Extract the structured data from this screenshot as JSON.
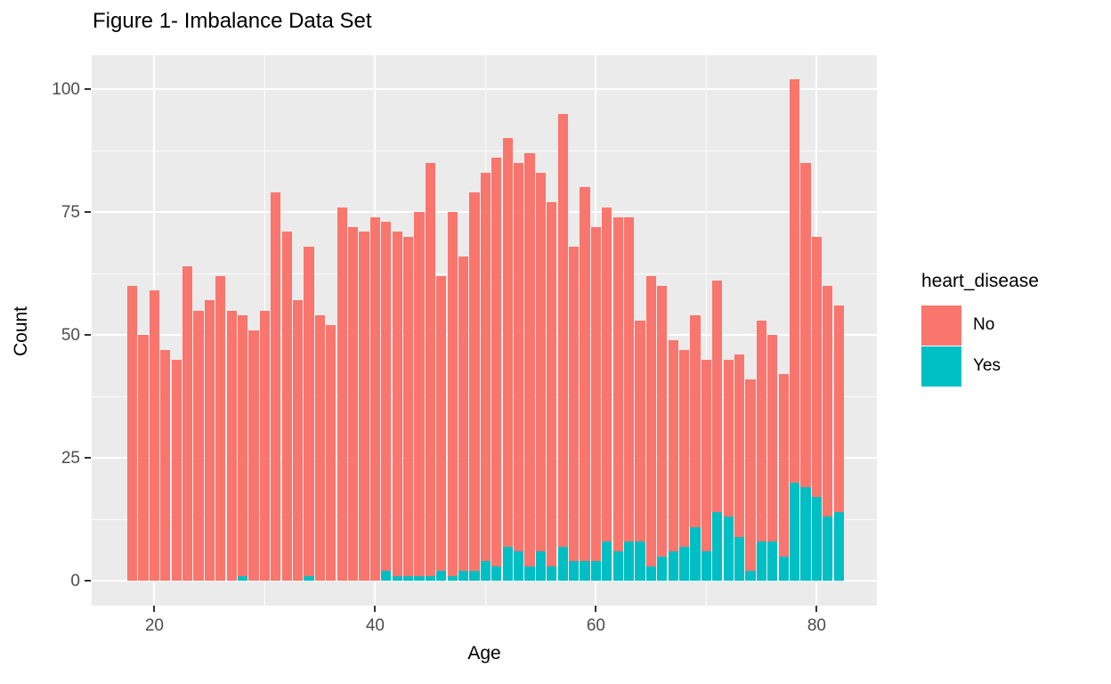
{
  "title": "Figure 1- Imbalance Data Set",
  "axes": {
    "x_label": "Age",
    "y_label": "Count",
    "x_tick_values": [
      20,
      40,
      60,
      80
    ],
    "y_tick_values": [
      0,
      25,
      50,
      75,
      100
    ]
  },
  "legend": {
    "title": "heart_disease",
    "entries": [
      {
        "label": "No",
        "color": "#F8766D"
      },
      {
        "label": "Yes",
        "color": "#00BFC4"
      }
    ]
  },
  "colors": {
    "panel_background": "#EBEBEB",
    "gridline": "#FFFFFF",
    "tick_text": "#4D4D4D",
    "series_no": "#F8766D",
    "series_yes": "#00BFC4"
  },
  "chart_data": {
    "type": "bar",
    "stacked": true,
    "title": "Figure 1- Imbalance Data Set",
    "xlabel": "Age",
    "ylabel": "Count",
    "legend_title": "heart_disease",
    "legend_position": "right",
    "grid": true,
    "xlim": [
      14.3,
      85.7
    ],
    "ylim": [
      0,
      107
    ],
    "xticks": [
      20,
      40,
      60,
      80
    ],
    "yticks": [
      0,
      25,
      50,
      75,
      100
    ],
    "xticks_minor": [
      30,
      50,
      70
    ],
    "yticks_minor": [
      12.5,
      37.5,
      62.5,
      87.5
    ],
    "x": [
      18,
      19,
      20,
      21,
      22,
      23,
      24,
      25,
      26,
      27,
      28,
      29,
      30,
      31,
      32,
      33,
      34,
      35,
      36,
      37,
      38,
      39,
      40,
      41,
      42,
      43,
      44,
      45,
      46,
      47,
      48,
      49,
      50,
      51,
      52,
      53,
      54,
      55,
      56,
      57,
      58,
      59,
      60,
      61,
      62,
      63,
      64,
      65,
      66,
      67,
      68,
      69,
      70,
      71,
      72,
      73,
      74,
      75,
      76,
      77,
      78,
      79,
      80,
      81,
      82
    ],
    "series": [
      {
        "name": "No",
        "color": "#F8766D",
        "values": [
          60,
          50,
          59,
          47,
          45,
          64,
          55,
          57,
          62,
          55,
          53,
          51,
          55,
          79,
          71,
          57,
          67,
          54,
          52,
          76,
          72,
          71,
          74,
          71,
          70,
          69,
          74,
          84,
          60,
          74,
          64,
          77,
          79,
          83,
          83,
          79,
          84,
          77,
          74,
          88,
          64,
          76,
          68,
          68,
          68,
          66,
          45,
          59,
          55,
          43,
          40,
          43,
          39,
          47,
          32,
          37,
          39,
          45,
          42,
          37,
          82,
          66,
          53,
          47,
          42
        ]
      },
      {
        "name": "Yes",
        "color": "#00BFC4",
        "values": [
          0,
          0,
          0,
          0,
          0,
          0,
          0,
          0,
          0,
          0,
          1,
          0,
          0,
          0,
          0,
          0,
          1,
          0,
          0,
          0,
          0,
          0,
          0,
          2,
          1,
          1,
          1,
          1,
          2,
          1,
          2,
          2,
          4,
          3,
          7,
          6,
          3,
          6,
          3,
          7,
          4,
          4,
          4,
          8,
          6,
          8,
          8,
          3,
          5,
          6,
          7,
          11,
          6,
          14,
          13,
          9,
          2,
          8,
          8,
          5,
          20,
          19,
          17,
          13,
          14
        ]
      }
    ]
  }
}
